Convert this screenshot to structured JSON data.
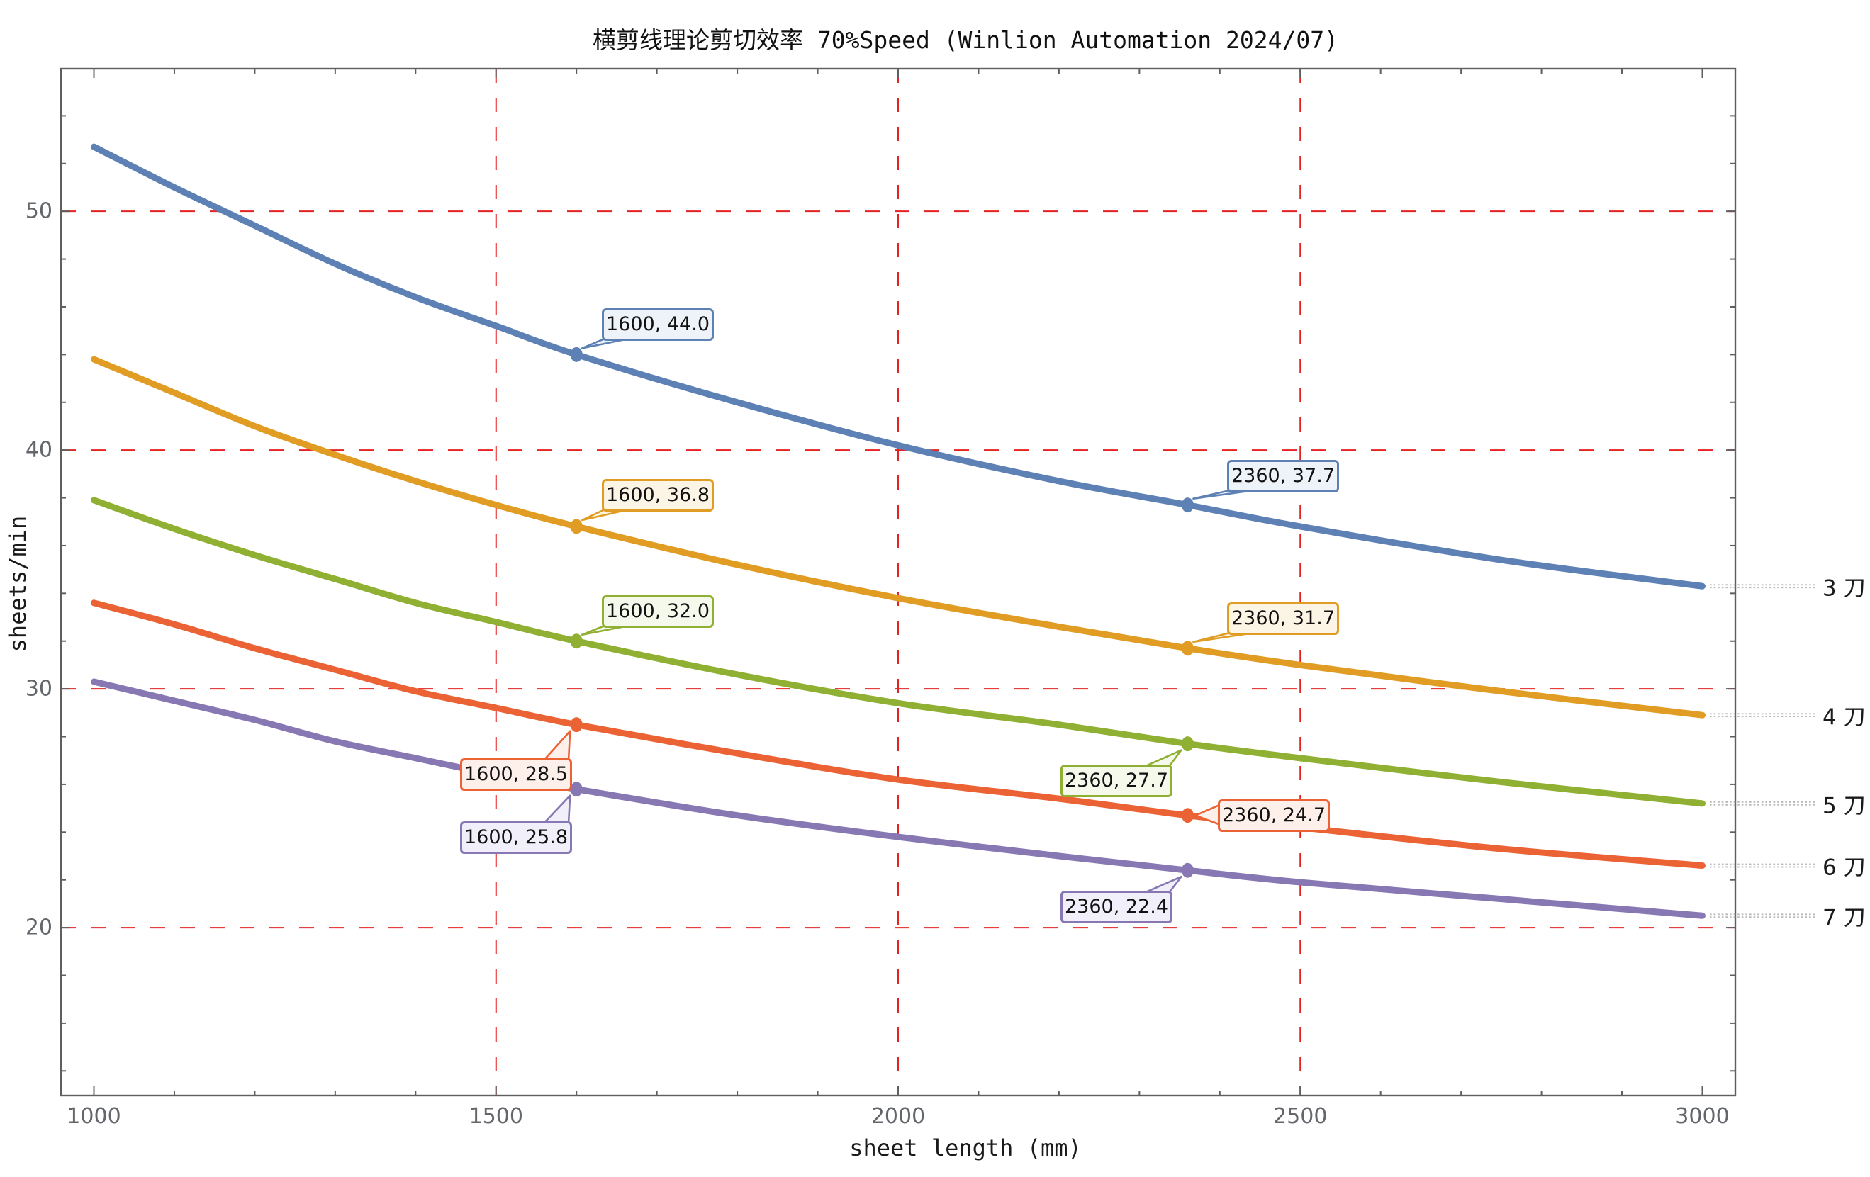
{
  "title": "横剪线理论剪切效率 70%Speed (Winlion Automation 2024/07)",
  "frame": {
    "axis_color": "#5f5f5f",
    "tick_label_color": "#63676c",
    "leader_color": "#b9b9b9",
    "background": "#ffffff"
  },
  "chart_data": {
    "type": "line",
    "title": "横剪线理论剪切效率 70%Speed (Winlion Automation 2024/07)",
    "xlabel": "sheet length (mm)",
    "ylabel": "sheets/min",
    "xlim": [
      959,
      3041
    ],
    "ylim": [
      13,
      56
    ],
    "x_ticks": [
      1000,
      1500,
      2000,
      2500,
      3000
    ],
    "y_ticks": [
      20,
      30,
      40,
      50
    ],
    "x_minor_tick_step": 100,
    "y_minor_tick_step": 2,
    "grid": {
      "x_values": [
        1500,
        2000,
        2500
      ],
      "y_values": [
        20,
        30,
        40,
        50
      ],
      "color": "#e52222",
      "style": "dashed"
    },
    "legend_position": "right-outside",
    "x": [
      1000,
      1100,
      1200,
      1300,
      1400,
      1500,
      1600,
      1800,
      2000,
      2200,
      2360,
      2500,
      2750,
      3000
    ],
    "series": [
      {
        "name": "3 刀",
        "color": "#5e81b5",
        "tint": "#eef2f9",
        "end_value": 34.3,
        "values": [
          52.7,
          51.0,
          49.4,
          47.8,
          46.4,
          45.2,
          44.0,
          42.0,
          40.2,
          38.7,
          37.7,
          36.8,
          35.4,
          34.3
        ],
        "callouts": [
          {
            "text": "1600, 44.0",
            "x": 1600,
            "y": 44.0,
            "box": [
              849,
              435
            ],
            "tail": "bl"
          },
          {
            "text": "2360, 37.7",
            "x": 2360,
            "y": 37.7,
            "box": [
              1731,
              649
            ],
            "tail": "bl"
          }
        ]
      },
      {
        "name": "4 刀",
        "color": "#e19c24",
        "tint": "#fcf5e6",
        "end_value": 28.9,
        "values": [
          43.8,
          42.4,
          41.0,
          39.8,
          38.7,
          37.7,
          36.8,
          35.2,
          33.8,
          32.6,
          31.7,
          31.0,
          29.9,
          28.9
        ],
        "callouts": [
          {
            "text": "1600, 36.8",
            "x": 1600,
            "y": 36.8,
            "box": [
              849,
              676
            ],
            "tail": "bl"
          },
          {
            "text": "2360, 31.7",
            "x": 2360,
            "y": 31.7,
            "box": [
              1731,
              850
            ],
            "tail": "bl"
          }
        ]
      },
      {
        "name": "5 刀",
        "color": "#8fb032",
        "tint": "#f5f9ec",
        "end_value": 25.2,
        "values": [
          37.9,
          36.7,
          35.6,
          34.6,
          33.6,
          32.8,
          32.0,
          30.6,
          29.4,
          28.5,
          27.7,
          27.1,
          26.1,
          25.2
        ],
        "callouts": [
          {
            "text": "1600, 32.0",
            "x": 1600,
            "y": 32.0,
            "box": [
              849,
              840
            ],
            "tail": "bl"
          },
          {
            "text": "2360, 27.7",
            "x": 2360,
            "y": 27.7,
            "box": [
              1496,
              1079
            ],
            "tail": "tr"
          }
        ]
      },
      {
        "name": "6 刀",
        "color": "#eb6235",
        "tint": "#fdefe9",
        "end_value": 22.6,
        "values": [
          33.6,
          32.7,
          31.7,
          30.8,
          29.9,
          29.2,
          28.5,
          27.3,
          26.2,
          25.4,
          24.7,
          24.2,
          23.3,
          22.6
        ],
        "callouts": [
          {
            "text": "1600, 28.5",
            "x": 1600,
            "y": 28.5,
            "box": [
              649,
              1070
            ],
            "tail": "tr"
          },
          {
            "text": "2360, 24.7",
            "x": 2360,
            "y": 24.7,
            "box": [
              1718,
              1128
            ],
            "tail": "left"
          }
        ]
      },
      {
        "name": "7 刀",
        "color": "#8778b3",
        "tint": "#f1effa",
        "end_value": 20.5,
        "values": [
          30.3,
          29.5,
          28.7,
          27.8,
          27.1,
          26.4,
          25.8,
          24.7,
          23.8,
          23.0,
          22.4,
          21.9,
          21.2,
          20.5
        ],
        "callouts": [
          {
            "text": "1600, 25.8",
            "x": 1600,
            "y": 25.8,
            "box": [
              649,
              1159
            ],
            "tail": "tr"
          },
          {
            "text": "2360, 22.4",
            "x": 2360,
            "y": 22.4,
            "box": [
              1496,
              1257
            ],
            "tail": "tr"
          }
        ]
      }
    ]
  }
}
